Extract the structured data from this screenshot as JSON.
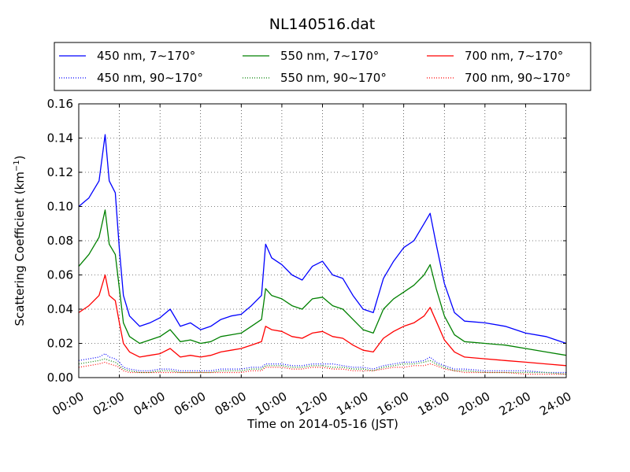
{
  "chart_data": {
    "type": "line",
    "title": "NL140516.dat",
    "xlabel": "Time on 2014-05-16 (JST)",
    "ylabel_main": "Scattering Coefficient (km",
    "ylabel_sup": "−1",
    "ylabel_close": ")",
    "xlim": [
      0,
      24
    ],
    "ylim": [
      0,
      0.16
    ],
    "grid": true,
    "legend_placement": "top (above plot)",
    "x_ticks": [
      {
        "value": 0,
        "label": "00:00"
      },
      {
        "value": 2,
        "label": "02:00"
      },
      {
        "value": 4,
        "label": "04:00"
      },
      {
        "value": 6,
        "label": "06:00"
      },
      {
        "value": 8,
        "label": "08:00"
      },
      {
        "value": 10,
        "label": "10:00"
      },
      {
        "value": 12,
        "label": "12:00"
      },
      {
        "value": 14,
        "label": "14:00"
      },
      {
        "value": 16,
        "label": "16:00"
      },
      {
        "value": 18,
        "label": "18:00"
      },
      {
        "value": 20,
        "label": "20:00"
      },
      {
        "value": 22,
        "label": "22:00"
      },
      {
        "value": 24,
        "label": "24:00"
      }
    ],
    "y_ticks": [
      {
        "value": 0,
        "label": "0.00"
      },
      {
        "value": 0.02,
        "label": "0.02"
      },
      {
        "value": 0.04,
        "label": "0.04"
      },
      {
        "value": 0.06,
        "label": "0.06"
      },
      {
        "value": 0.08,
        "label": "0.08"
      },
      {
        "value": 0.1,
        "label": "0.10"
      },
      {
        "value": 0.12,
        "label": "0.12"
      },
      {
        "value": 0.14,
        "label": "0.14"
      },
      {
        "value": 0.16,
        "label": "0.16"
      }
    ],
    "x": [
      0,
      0.5,
      1.0,
      1.3,
      1.5,
      1.8,
      2.0,
      2.2,
      2.5,
      3.0,
      3.5,
      4.0,
      4.5,
      5.0,
      5.5,
      6.0,
      6.5,
      7.0,
      7.5,
      8.0,
      8.5,
      9.0,
      9.2,
      9.5,
      10.0,
      10.5,
      11.0,
      11.5,
      12.0,
      12.5,
      13.0,
      13.5,
      14.0,
      14.5,
      15.0,
      15.5,
      16.0,
      16.5,
      17.0,
      17.3,
      17.6,
      18.0,
      18.5,
      19.0,
      20.0,
      21.0,
      22.0,
      23.0,
      24.0
    ],
    "series": [
      {
        "name": "450 nm, 7∼170°",
        "color": "#0000ff",
        "style": "solid",
        "values": [
          0.1,
          0.105,
          0.115,
          0.142,
          0.115,
          0.108,
          0.075,
          0.048,
          0.036,
          0.03,
          0.032,
          0.035,
          0.04,
          0.03,
          0.032,
          0.028,
          0.03,
          0.034,
          0.036,
          0.037,
          0.042,
          0.048,
          0.078,
          0.07,
          0.066,
          0.06,
          0.057,
          0.065,
          0.068,
          0.06,
          0.058,
          0.048,
          0.04,
          0.038,
          0.058,
          0.068,
          0.076,
          0.08,
          0.09,
          0.096,
          0.078,
          0.055,
          0.038,
          0.033,
          0.032,
          0.03,
          0.026,
          0.024,
          0.02
        ]
      },
      {
        "name": "550 nm, 7∼170°",
        "color": "#008000",
        "style": "solid",
        "values": [
          0.065,
          0.072,
          0.082,
          0.098,
          0.078,
          0.072,
          0.052,
          0.032,
          0.024,
          0.02,
          0.022,
          0.024,
          0.028,
          0.021,
          0.022,
          0.02,
          0.021,
          0.024,
          0.025,
          0.026,
          0.03,
          0.034,
          0.052,
          0.048,
          0.046,
          0.042,
          0.04,
          0.046,
          0.047,
          0.042,
          0.04,
          0.034,
          0.028,
          0.026,
          0.04,
          0.046,
          0.05,
          0.054,
          0.06,
          0.066,
          0.052,
          0.036,
          0.025,
          0.021,
          0.02,
          0.019,
          0.017,
          0.015,
          0.013
        ]
      },
      {
        "name": "700 nm, 7∼170°",
        "color": "#ff0000",
        "style": "solid",
        "values": [
          0.038,
          0.042,
          0.048,
          0.06,
          0.048,
          0.045,
          0.032,
          0.02,
          0.015,
          0.012,
          0.013,
          0.014,
          0.017,
          0.012,
          0.013,
          0.012,
          0.013,
          0.015,
          0.016,
          0.017,
          0.019,
          0.021,
          0.03,
          0.028,
          0.027,
          0.024,
          0.023,
          0.026,
          0.027,
          0.024,
          0.023,
          0.019,
          0.016,
          0.015,
          0.023,
          0.027,
          0.03,
          0.032,
          0.036,
          0.041,
          0.033,
          0.022,
          0.015,
          0.012,
          0.011,
          0.01,
          0.009,
          0.008,
          0.007
        ]
      },
      {
        "name": "450 nm, 90∼170°",
        "color": "#0000ff",
        "style": "dotted",
        "values": [
          0.01,
          0.011,
          0.012,
          0.014,
          0.012,
          0.011,
          0.009,
          0.006,
          0.005,
          0.004,
          0.004,
          0.005,
          0.005,
          0.004,
          0.004,
          0.004,
          0.004,
          0.005,
          0.005,
          0.005,
          0.006,
          0.006,
          0.008,
          0.008,
          0.008,
          0.007,
          0.007,
          0.008,
          0.008,
          0.008,
          0.007,
          0.006,
          0.006,
          0.005,
          0.007,
          0.008,
          0.009,
          0.009,
          0.01,
          0.012,
          0.009,
          0.007,
          0.005,
          0.005,
          0.004,
          0.004,
          0.004,
          0.003,
          0.003
        ]
      },
      {
        "name": "550 nm, 90∼170°",
        "color": "#008000",
        "style": "dotted",
        "values": [
          0.008,
          0.009,
          0.01,
          0.011,
          0.01,
          0.009,
          0.007,
          0.005,
          0.004,
          0.003,
          0.003,
          0.004,
          0.004,
          0.003,
          0.003,
          0.003,
          0.003,
          0.004,
          0.004,
          0.004,
          0.005,
          0.005,
          0.007,
          0.007,
          0.007,
          0.006,
          0.006,
          0.007,
          0.007,
          0.006,
          0.006,
          0.005,
          0.005,
          0.004,
          0.006,
          0.007,
          0.008,
          0.008,
          0.009,
          0.01,
          0.008,
          0.006,
          0.004,
          0.004,
          0.003,
          0.003,
          0.003,
          0.003,
          0.002
        ]
      },
      {
        "name": "700 nm, 90∼170°",
        "color": "#ff0000",
        "style": "dotted",
        "values": [
          0.006,
          0.007,
          0.008,
          0.009,
          0.008,
          0.007,
          0.006,
          0.004,
          0.003,
          0.003,
          0.003,
          0.003,
          0.003,
          0.003,
          0.003,
          0.003,
          0.003,
          0.003,
          0.003,
          0.003,
          0.004,
          0.004,
          0.006,
          0.006,
          0.006,
          0.005,
          0.005,
          0.006,
          0.006,
          0.005,
          0.005,
          0.004,
          0.004,
          0.004,
          0.005,
          0.006,
          0.006,
          0.007,
          0.007,
          0.008,
          0.007,
          0.005,
          0.004,
          0.003,
          0.003,
          0.003,
          0.002,
          0.002,
          0.002
        ]
      }
    ]
  }
}
